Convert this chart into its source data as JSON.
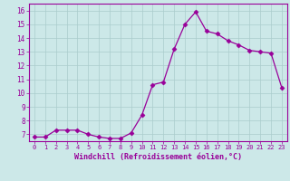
{
  "x": [
    0,
    1,
    2,
    3,
    4,
    5,
    6,
    7,
    8,
    9,
    10,
    11,
    12,
    13,
    14,
    15,
    16,
    17,
    18,
    19,
    20,
    21,
    22,
    23
  ],
  "y": [
    6.8,
    6.8,
    7.3,
    7.3,
    7.3,
    7.0,
    6.8,
    6.7,
    6.7,
    7.1,
    8.4,
    10.6,
    10.8,
    13.2,
    15.0,
    15.9,
    14.5,
    14.3,
    13.8,
    13.5,
    13.1,
    13.0,
    12.9,
    10.4
  ],
  "line_color": "#990099",
  "marker": "D",
  "marker_size": 2.5,
  "bg_color": "#cce8e8",
  "grid_color": "#aacccc",
  "xlabel": "Windchill (Refroidissement éolien,°C)",
  "ylabel_ticks": [
    7,
    8,
    9,
    10,
    11,
    12,
    13,
    14,
    15,
    16
  ],
  "ylim": [
    6.5,
    16.5
  ],
  "xlim": [
    -0.5,
    23.5
  ],
  "xlabel_color": "#990099",
  "tick_color": "#990099",
  "axis_color": "#990099",
  "tick_fontsize": 5.0,
  "xlabel_fontsize": 6.0,
  "ytick_fontsize": 5.5
}
